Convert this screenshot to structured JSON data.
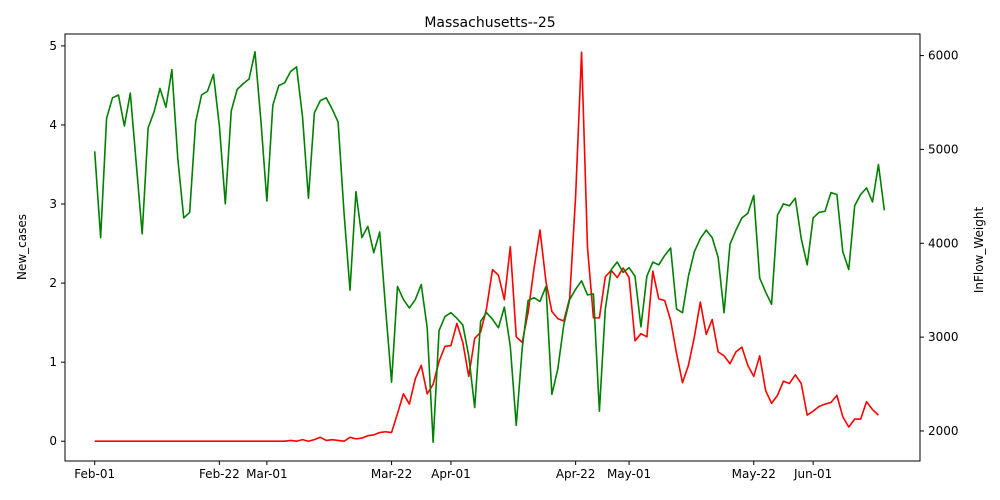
{
  "chart_data": {
    "type": "line",
    "title": "Massachusetts--25",
    "xlabel": "",
    "ylabel_left": "New_cases",
    "ylabel_right": "InFlow_Weight",
    "x_start": "2020-02-01",
    "x_ticks": [
      {
        "date": "2020-02-01",
        "label": "Feb-01"
      },
      {
        "date": "2020-02-22",
        "label": "Feb-22"
      },
      {
        "date": "2020-03-01",
        "label": "Mar-01"
      },
      {
        "date": "2020-03-22",
        "label": "Mar-22"
      },
      {
        "date": "2020-04-01",
        "label": "Apr-01"
      },
      {
        "date": "2020-04-22",
        "label": "Apr-22"
      },
      {
        "date": "2020-05-01",
        "label": "May-01"
      },
      {
        "date": "2020-05-22",
        "label": "May-22"
      },
      {
        "date": "2020-06-01",
        "label": "Jun-01"
      }
    ],
    "x_range": [
      "2020-01-27",
      "2020-06-19"
    ],
    "ylim_left": [
      -0.25,
      5.15
    ],
    "ylim_right": [
      1680,
      6230
    ],
    "yticks_left": [
      0,
      1,
      2,
      3,
      4,
      5
    ],
    "yticks_right": [
      2000,
      3000,
      4000,
      5000,
      6000
    ],
    "grid": false,
    "legend": "none",
    "series": [
      {
        "axis": "left",
        "color": "#ff0000",
        "values": [
          0,
          0,
          0,
          0,
          0,
          0,
          0,
          0,
          0,
          0,
          0,
          0,
          0,
          0,
          0,
          0,
          0,
          0,
          0,
          0,
          0,
          0,
          0,
          0,
          0,
          0,
          0,
          0,
          0,
          0,
          0,
          0,
          0,
          0.01,
          0,
          0.02,
          0,
          0.02,
          0.05,
          0.01,
          0.02,
          0.01,
          0,
          0.05,
          0.03,
          0.04,
          0.07,
          0.08,
          0.11,
          0.12,
          0.11,
          0.35,
          0.6,
          0.47,
          0.79,
          0.96,
          0.6,
          0.72,
          1.01,
          1.2,
          1.21,
          1.49,
          1.25,
          0.82,
          1.3,
          1.38,
          1.68,
          2.17,
          2.1,
          1.79,
          2.46,
          1.32,
          1.25,
          1.63,
          2.19,
          2.67,
          2.02,
          1.64,
          1.55,
          1.52,
          1.81,
          3.1,
          4.92,
          2.45,
          1.56,
          1.56,
          2.08,
          2.16,
          2.07,
          2.19,
          2.07,
          1.27,
          1.36,
          1.32,
          2.15,
          1.8,
          1.78,
          1.53,
          1.11,
          0.74,
          0.96,
          1.32,
          1.76,
          1.35,
          1.54,
          1.13,
          1.08,
          0.98,
          1.13,
          1.19,
          0.96,
          0.82,
          1.08,
          0.64,
          0.48,
          0.58,
          0.76,
          0.73,
          0.84,
          0.73,
          0.33,
          0.38,
          0.44,
          0.47,
          0.49,
          0.58,
          0.31,
          0.18,
          0.28,
          0.28,
          0.5,
          0.4,
          0.33
        ]
      },
      {
        "axis": "right",
        "color": "#008000",
        "values": [
          4980,
          4060,
          5330,
          5550,
          5580,
          5250,
          5600,
          4850,
          4100,
          5230,
          5400,
          5650,
          5450,
          5850,
          4900,
          4270,
          4330,
          5290,
          5580,
          5620,
          5800,
          5250,
          4420,
          5410,
          5640,
          5700,
          5750,
          6040,
          5300,
          4450,
          5470,
          5680,
          5710,
          5830,
          5880,
          5350,
          4480,
          5390,
          5520,
          5550,
          5430,
          5290,
          4320,
          3500,
          4550,
          4060,
          4180,
          3900,
          4120,
          3300,
          2520,
          3540,
          3400,
          3310,
          3400,
          3560,
          3100,
          1880,
          3070,
          3220,
          3260,
          3200,
          3130,
          2800,
          2250,
          3170,
          3260,
          3190,
          3100,
          3320,
          2900,
          2060,
          2880,
          3390,
          3420,
          3380,
          3540,
          2390,
          2660,
          3130,
          3400,
          3510,
          3600,
          3450,
          3460,
          2210,
          3300,
          3720,
          3800,
          3690,
          3740,
          3650,
          3110,
          3650,
          3800,
          3770,
          3870,
          3950,
          3300,
          3260,
          3650,
          3910,
          4050,
          4140,
          4060,
          3850,
          3260,
          3990,
          4140,
          4270,
          4320,
          4510,
          3630,
          3480,
          3350,
          4300,
          4420,
          4400,
          4480,
          4050,
          3770,
          4270,
          4330,
          4340,
          4540,
          4520,
          3910,
          3720,
          4400,
          4520,
          4590,
          4440,
          4840,
          4350
        ]
      }
    ]
  }
}
